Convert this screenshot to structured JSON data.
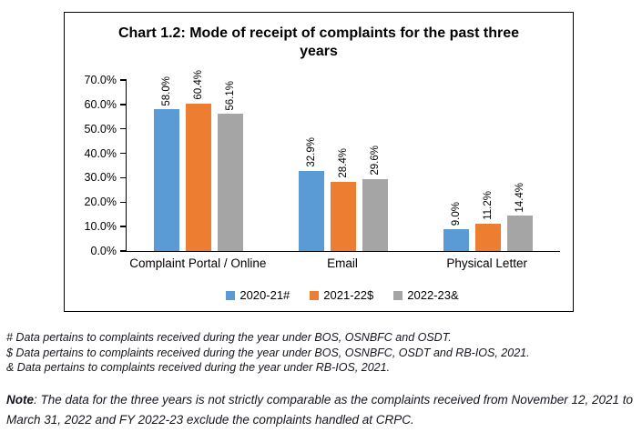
{
  "chart": {
    "title": "Chart 1.2: Mode of receipt of complaints for the past three years"
  },
  "chart_data": {
    "type": "bar",
    "title": "Chart 1.2: Mode of receipt of complaints for the past three years",
    "categories": [
      "Complaint Portal / Online",
      "Email",
      "Physical Letter"
    ],
    "series": [
      {
        "name": "2020-21#",
        "color": "#5B9BD5",
        "values": [
          58.0,
          32.9,
          9.0
        ],
        "labels": [
          "58.0%",
          "32.9%",
          "9.0%"
        ]
      },
      {
        "name": "2021-22$",
        "color": "#ED7D31",
        "values": [
          60.4,
          28.4,
          11.2
        ],
        "labels": [
          "60.4%",
          "28.4%",
          "11.2%"
        ]
      },
      {
        "name": "2022-23&",
        "color": "#A5A5A5",
        "values": [
          56.1,
          29.6,
          14.4
        ],
        "labels": [
          "56.1%",
          "29.6%",
          "14.4%"
        ]
      }
    ],
    "xlabel": "",
    "ylabel": "",
    "ylim": [
      0,
      70
    ],
    "yticks": [
      "0.0%",
      "10.0%",
      "20.0%",
      "30.0%",
      "40.0%",
      "50.0%",
      "60.0%",
      "70.0%"
    ],
    "grid": false,
    "legend_position": "bottom",
    "data_label_rotation": 90,
    "axis_color": "#000000"
  },
  "footnotes": [
    "# Data pertains to complaints received during the year under BOS, OSNBFC and OSDT.",
    "$ Data pertains to complaints received during the year under BOS, OSNBFC, OSDT and RB-IOS, 2021.",
    "& Data pertains to complaints received during the year under RB-IOS, 2021."
  ],
  "note": {
    "label": "Note",
    "text": ": The data for the three years is not strictly comparable as the complaints received from November 12, 2021 to March 31, 2022 and FY 2022-23 exclude the complaints handled at CRPC."
  }
}
